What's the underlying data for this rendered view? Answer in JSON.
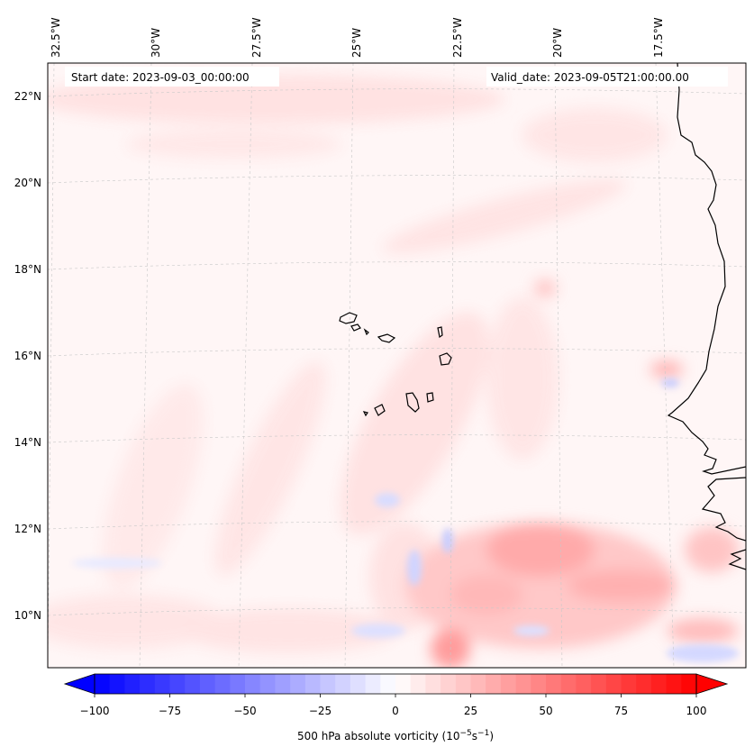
{
  "map": {
    "start_date": "Start date: 2023-09-03_00:00:00",
    "valid_date": "Valid_date: 2023-09-05T21:00:00.00",
    "lon_labels": [
      "32.5°W",
      "30°W",
      "27.5°W",
      "25°W",
      "22.5°W",
      "20°W",
      "17.5°W"
    ],
    "lat_labels": [
      "22°N",
      "20°N",
      "18°N",
      "16°N",
      "14°N",
      "12°N",
      "10°N"
    ]
  },
  "colorbar": {
    "ticks": [
      "−100",
      "−75",
      "−50",
      "−25",
      "0",
      "25",
      "50",
      "75",
      "100"
    ],
    "label": "500 hPa absolute vorticity (10",
    "label_exp1": "−5",
    "label_mid": "s",
    "label_exp2": "−1",
    "label_end": ")",
    "min": -100,
    "max": 100,
    "low_color": "#0000ff",
    "high_color": "#ff0000"
  }
}
